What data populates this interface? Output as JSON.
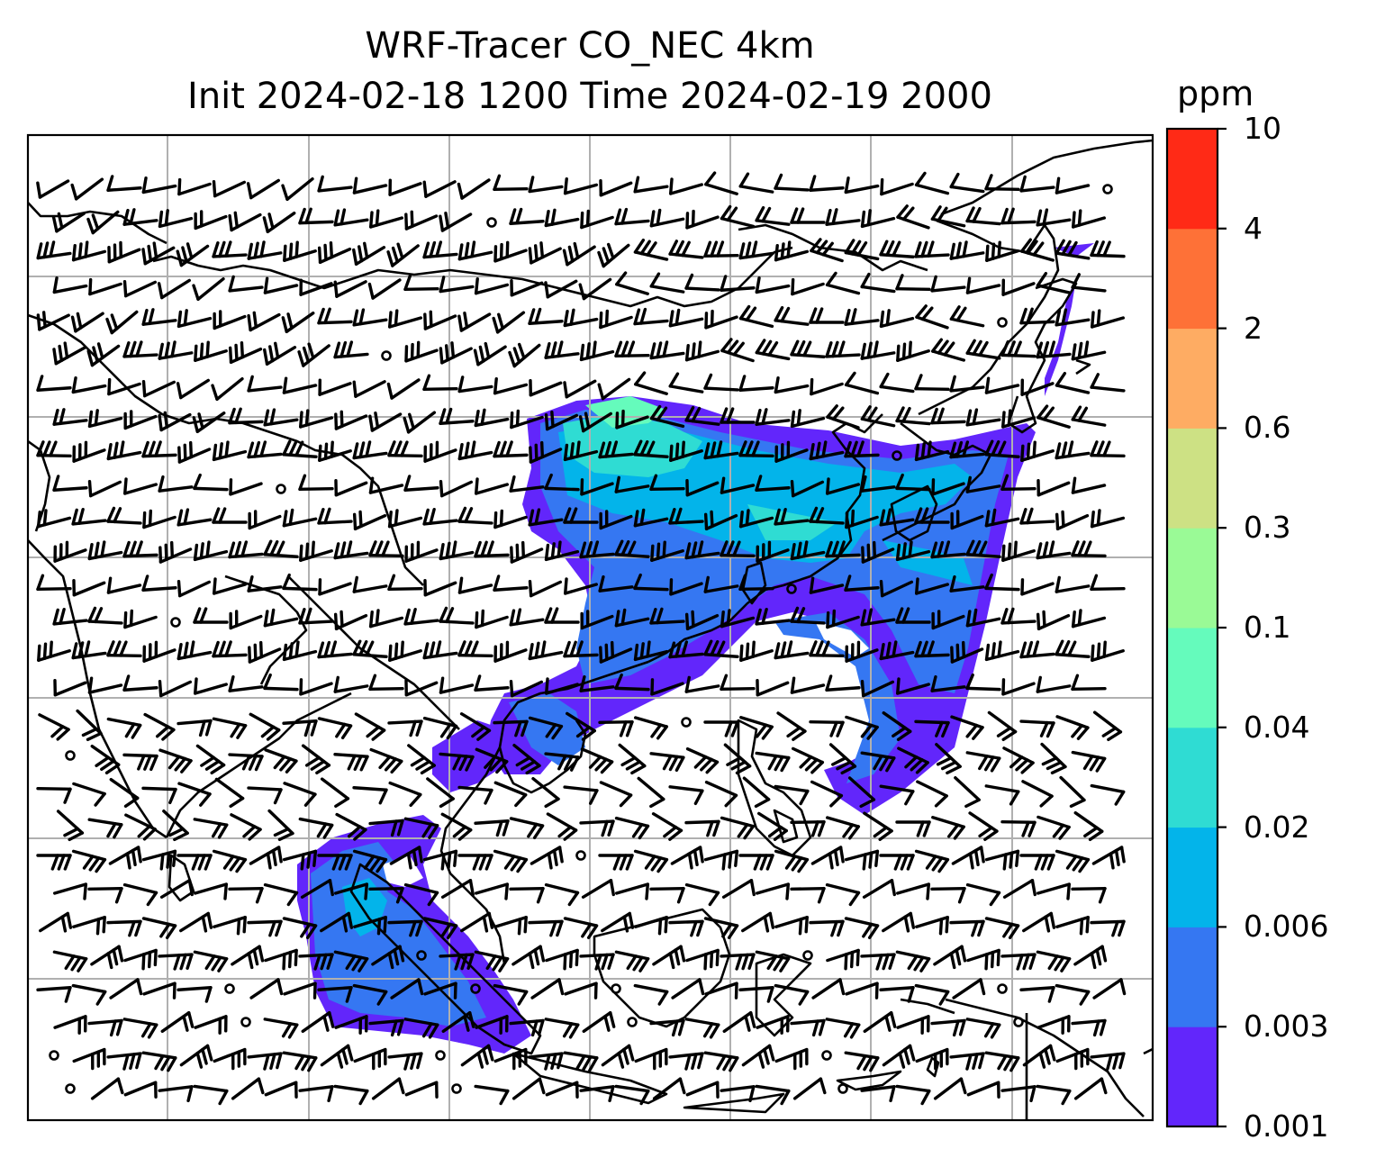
{
  "title": {
    "line1": "WRF-Tracer CO_NEC 4km",
    "line2": "Init 2024-02-18 1200 Time 2024-02-19 2000"
  },
  "colorbar": {
    "unit": "ppm",
    "tick_labels": [
      "0.001",
      "0.003",
      "0.006",
      "0.02",
      "0.04",
      "0.1",
      "0.3",
      "0.6",
      "2",
      "4",
      "10"
    ],
    "colors": [
      "#6226fb",
      "#3577f2",
      "#03b4ea",
      "#2fdcd3",
      "#65fbbc",
      "#9afa96",
      "#cde184",
      "#feac63",
      "#fe7137",
      "#ff2a16"
    ]
  },
  "map": {
    "background": "#ffffff",
    "gridline_color": "#b0b0b0",
    "coastline_color": "#000000",
    "wind_barbs_shown": true
  }
}
